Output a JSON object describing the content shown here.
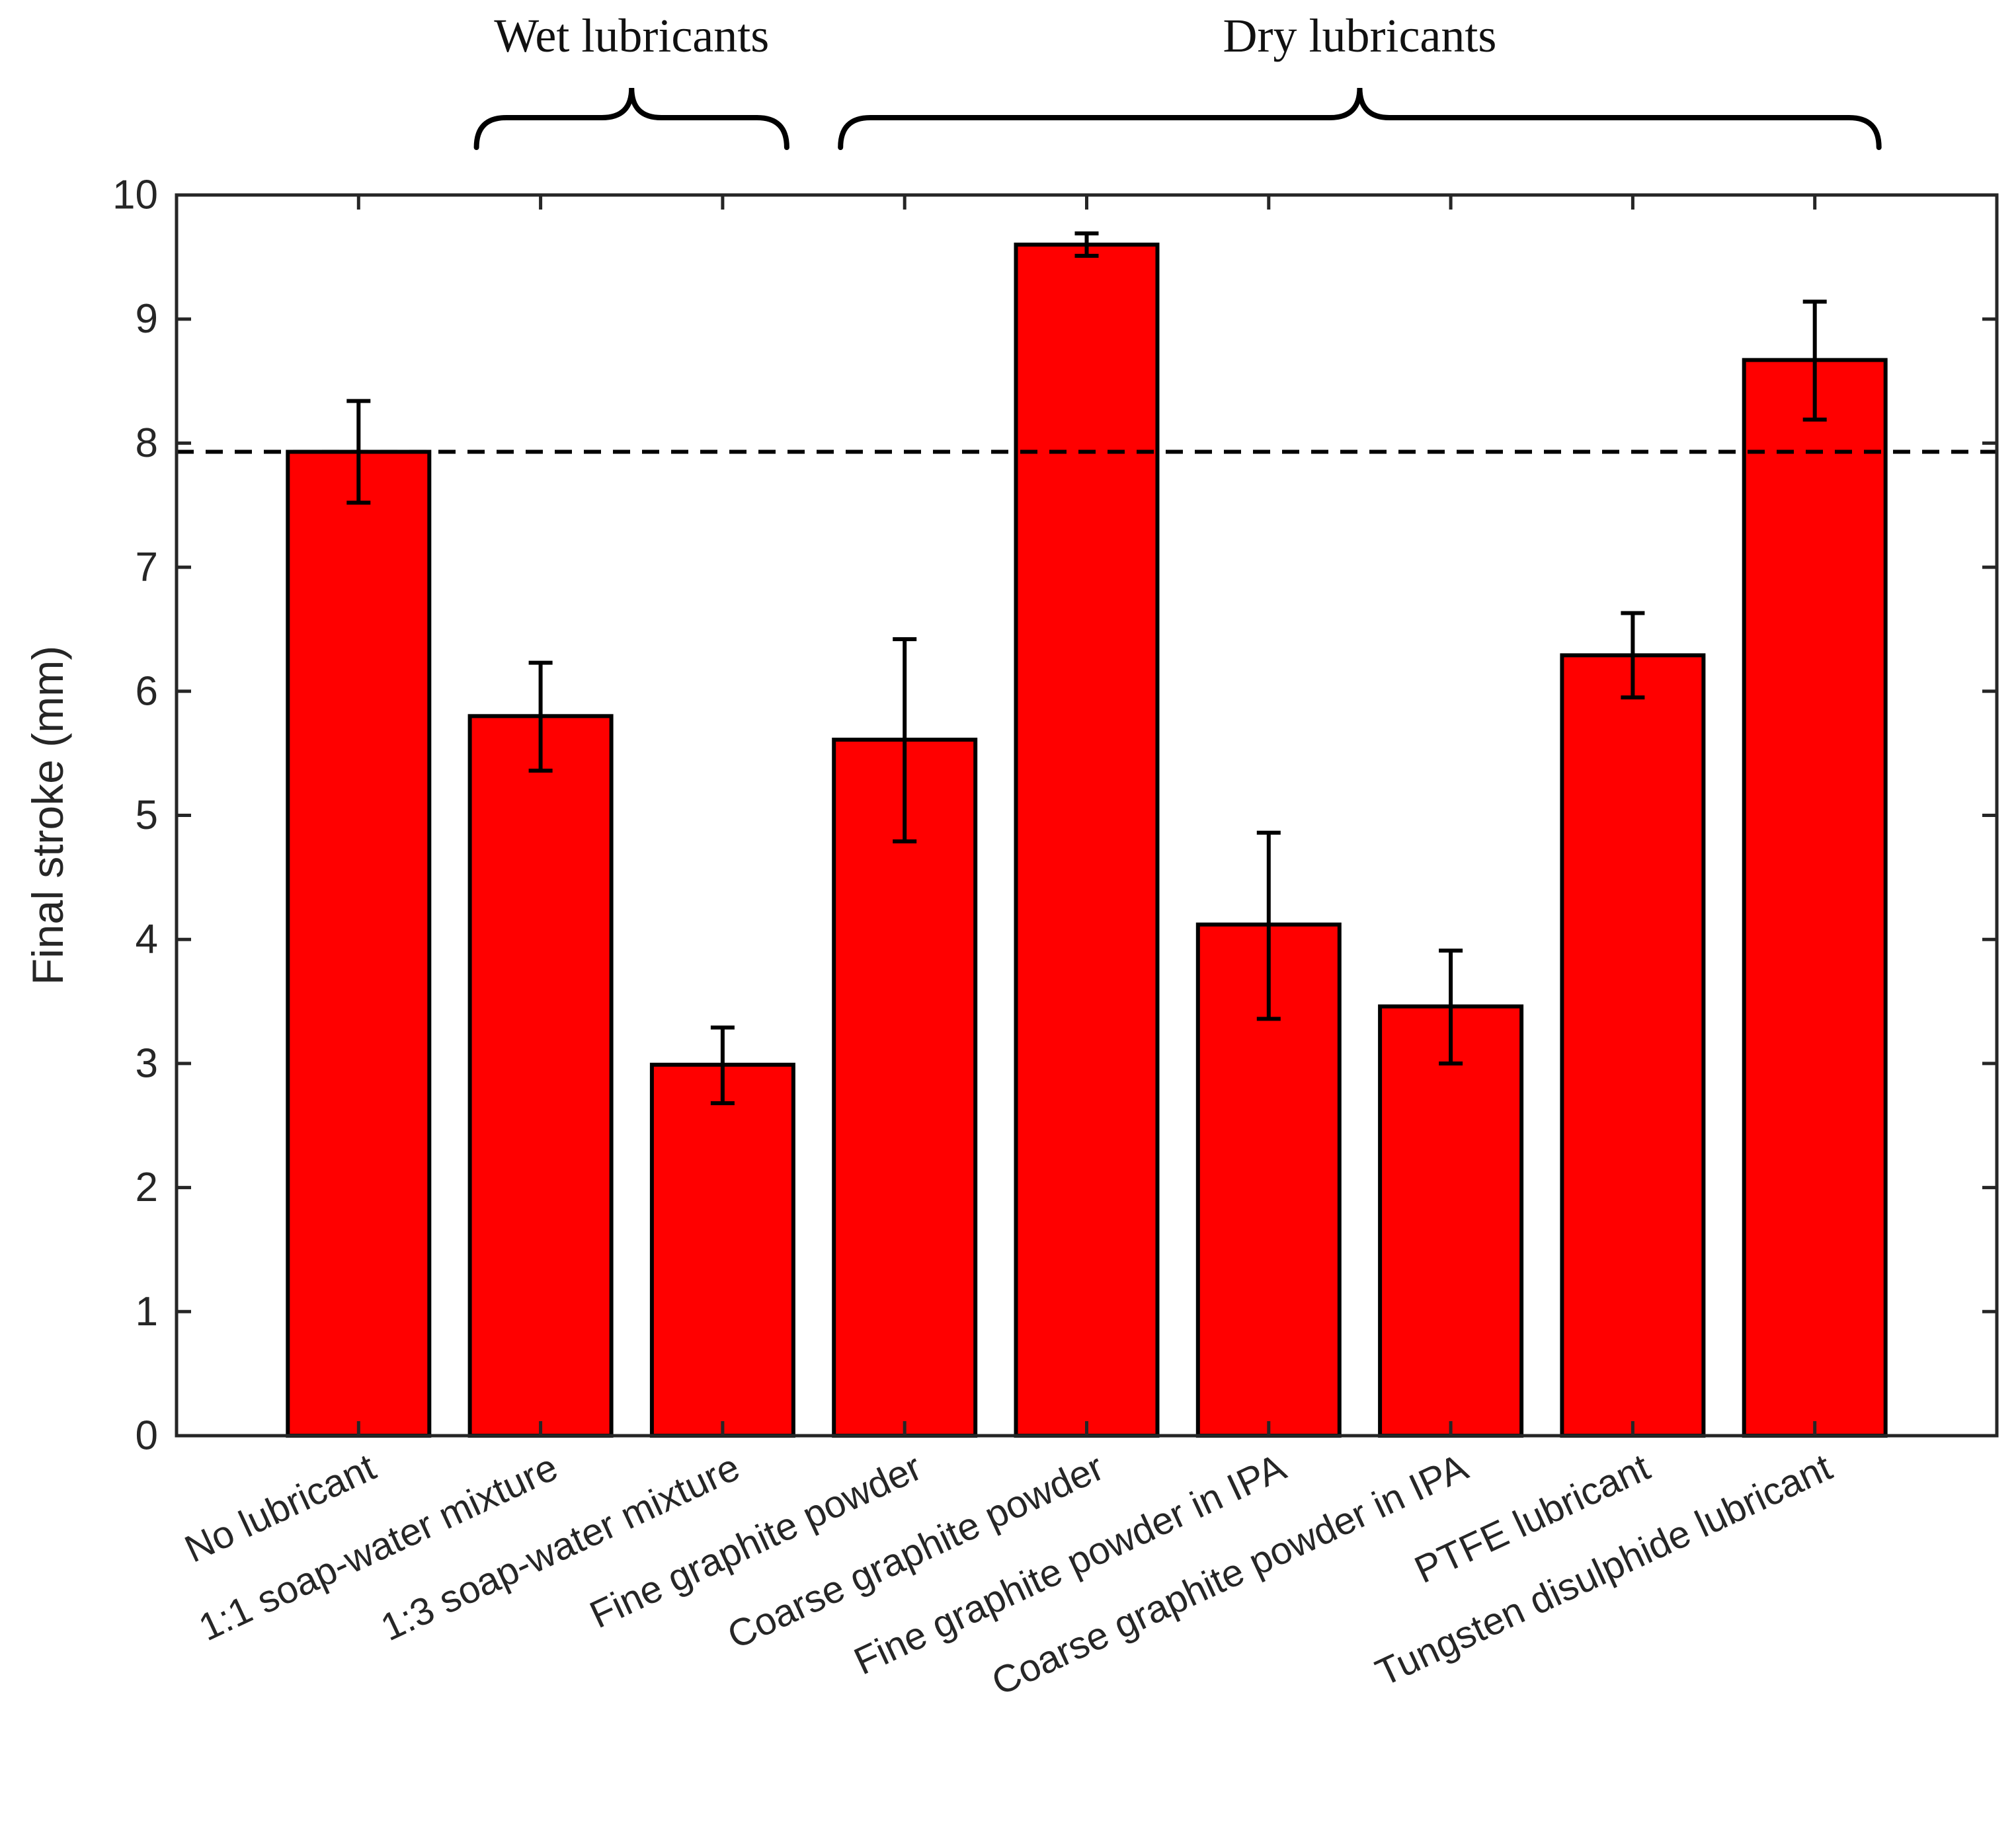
{
  "chart_data": {
    "type": "bar",
    "title": "",
    "xlabel": "",
    "ylabel": "Final stroke (mm)",
    "ylim": [
      0,
      10
    ],
    "yticks": [
      0,
      1,
      2,
      3,
      4,
      5,
      6,
      7,
      8,
      9,
      10
    ],
    "grid": false,
    "categories": [
      "No lubricant",
      "1:1 soap-water mixture",
      "1:3 soap-water mixture",
      "Fine graphite powder",
      "Coarse graphite powder",
      "Fine graphite powder in IPA",
      "Coarse graphite powder in IPA",
      "PTFE lubricant",
      "Tungsten disulphide lubricant"
    ],
    "values": [
      7.93,
      5.8,
      2.99,
      5.61,
      9.6,
      4.12,
      3.46,
      6.29,
      8.67
    ],
    "error_low": [
      7.52,
      5.36,
      2.68,
      4.79,
      9.51,
      3.36,
      3.0,
      5.95,
      8.19
    ],
    "error_high": [
      8.34,
      6.23,
      3.29,
      6.42,
      9.69,
      4.86,
      3.91,
      6.63,
      9.14
    ],
    "reference_line": {
      "value": 7.93,
      "style": "dashed"
    },
    "bar_color": "#ff0000",
    "edge_color": "#000000",
    "groups": [
      {
        "label": "Wet lubricants",
        "from": 1,
        "to": 2
      },
      {
        "label": "Dry lubricants",
        "from": 3,
        "to": 8
      }
    ]
  }
}
